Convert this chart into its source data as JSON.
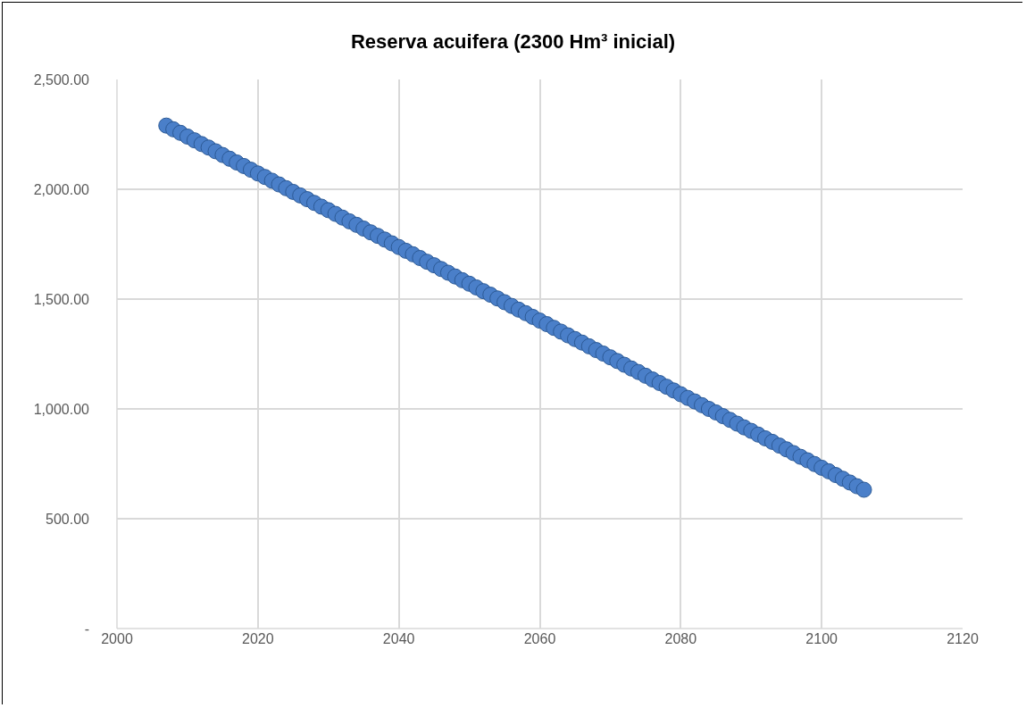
{
  "chart_data": {
    "type": "scatter",
    "title": "Reserva acuifera (2300 Hm³ inicial)",
    "x": [
      2007,
      2008,
      2009,
      2010,
      2011,
      2012,
      2013,
      2014,
      2015,
      2016,
      2017,
      2018,
      2019,
      2020,
      2021,
      2022,
      2023,
      2024,
      2025,
      2026,
      2027,
      2028,
      2029,
      2030,
      2031,
      2032,
      2033,
      2034,
      2035,
      2036,
      2037,
      2038,
      2039,
      2040,
      2041,
      2042,
      2043,
      2044,
      2045,
      2046,
      2047,
      2048,
      2049,
      2050,
      2051,
      2052,
      2053,
      2054,
      2055,
      2056,
      2057,
      2058,
      2059,
      2060,
      2061,
      2062,
      2063,
      2064,
      2065,
      2066,
      2067,
      2068,
      2069,
      2070,
      2071,
      2072,
      2073,
      2074,
      2075,
      2076,
      2077,
      2078,
      2079,
      2080,
      2081,
      2082,
      2083,
      2084,
      2085,
      2086,
      2087,
      2088,
      2089,
      2090,
      2091,
      2092,
      2093,
      2094,
      2095,
      2096,
      2097,
      2098,
      2099,
      2100,
      2101,
      2102,
      2103,
      2104,
      2105,
      2106
    ],
    "series": [
      {
        "color": "#4a7fc9",
        "values": [
          2290,
          2273,
          2257,
          2240,
          2223,
          2206,
          2190,
          2173,
          2156,
          2139,
          2122,
          2106,
          2089,
          2072,
          2056,
          2039,
          2022,
          2005,
          1988,
          1972,
          1955,
          1938,
          1921,
          1905,
          1888,
          1871,
          1854,
          1838,
          1821,
          1804,
          1788,
          1771,
          1754,
          1737,
          1720,
          1704,
          1687,
          1670,
          1654,
          1637,
          1620,
          1603,
          1586,
          1570,
          1553,
          1536,
          1520,
          1503,
          1486,
          1469,
          1452,
          1436,
          1419,
          1402,
          1386,
          1369,
          1352,
          1335,
          1318,
          1302,
          1285,
          1268,
          1252,
          1235,
          1218,
          1201,
          1184,
          1168,
          1151,
          1134,
          1118,
          1101,
          1084,
          1067,
          1050,
          1034,
          1017,
          1000,
          984,
          967,
          950,
          933,
          916,
          900,
          883,
          866,
          850,
          833,
          816,
          799,
          782,
          766,
          749,
          732,
          716,
          699,
          682,
          665,
          648,
          632
        ]
      }
    ],
    "xlim": [
      2000,
      2120
    ],
    "xticks": [
      2000,
      2020,
      2040,
      2060,
      2080,
      2100,
      2120
    ],
    "ylim": [
      0,
      2500
    ],
    "yticks": [
      {
        "value": 0,
        "label": "-"
      },
      {
        "value": 500,
        "label": "500.00"
      },
      {
        "value": 1000,
        "label": "1,000.00"
      },
      {
        "value": 1500,
        "label": "1,500.00"
      },
      {
        "value": 2000,
        "label": "2,000.00"
      },
      {
        "value": 2500,
        "label": "2,500.00"
      }
    ],
    "grid": true,
    "marker": "circle"
  }
}
